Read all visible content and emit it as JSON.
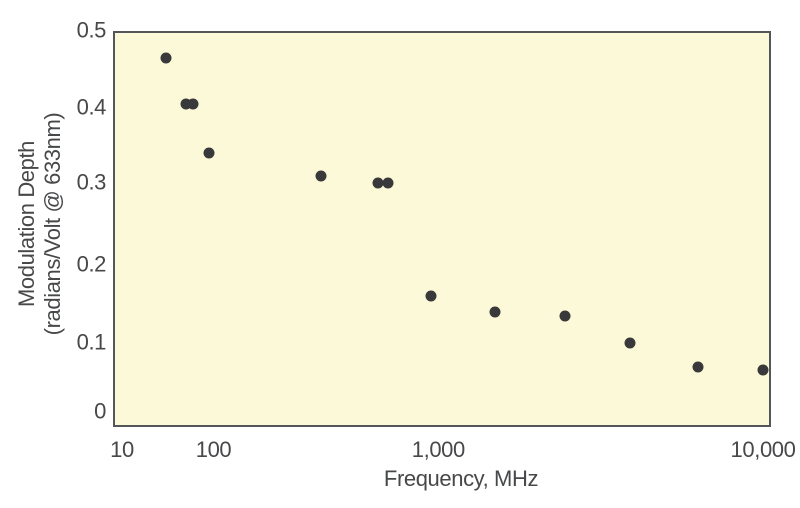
{
  "chart_data": {
    "type": "scatter",
    "title": "",
    "xlabel": "Frequency, MHz",
    "ylabel": "Modulation Depth",
    "ylabel_units": "(radians/Volt @ 633nm)",
    "x_scale": "log",
    "y_scale": "linear",
    "xlim": [
      10,
      10000
    ],
    "ylim": [
      0,
      0.5
    ],
    "grid": false,
    "legend": false,
    "x_ticks": [
      {
        "value": 10,
        "label": "10"
      },
      {
        "value": 100,
        "label": "100"
      },
      {
        "value": 1000,
        "label": "1,000"
      },
      {
        "value": 10000,
        "label": "10,000"
      }
    ],
    "y_ticks": [
      {
        "value": 0,
        "label": "0"
      },
      {
        "value": 0.1,
        "label": "0.1"
      },
      {
        "value": 0.2,
        "label": "0.2"
      },
      {
        "value": 0.3,
        "label": "0.3"
      },
      {
        "value": 0.4,
        "label": "0.4"
      },
      {
        "value": 0.5,
        "label": "0.5"
      }
    ],
    "points": [
      {
        "x": 30,
        "y": 0.465
      },
      {
        "x": 50,
        "y": 0.405
      },
      {
        "x": 60,
        "y": 0.405
      },
      {
        "x": 90,
        "y": 0.34
      },
      {
        "x": 300,
        "y": 0.31
      },
      {
        "x": 540,
        "y": 0.3
      },
      {
        "x": 600,
        "y": 0.3
      },
      {
        "x": 930,
        "y": 0.16
      },
      {
        "x": 1500,
        "y": 0.14
      },
      {
        "x": 2450,
        "y": 0.135
      },
      {
        "x": 3900,
        "y": 0.1
      },
      {
        "x": 6300,
        "y": 0.065
      },
      {
        "x": 10000,
        "y": 0.06
      }
    ],
    "colors": {
      "plot_background": "#fcf9d8",
      "plot_border": "#54565a",
      "marker": "#39393b",
      "text": "#47484a"
    }
  }
}
